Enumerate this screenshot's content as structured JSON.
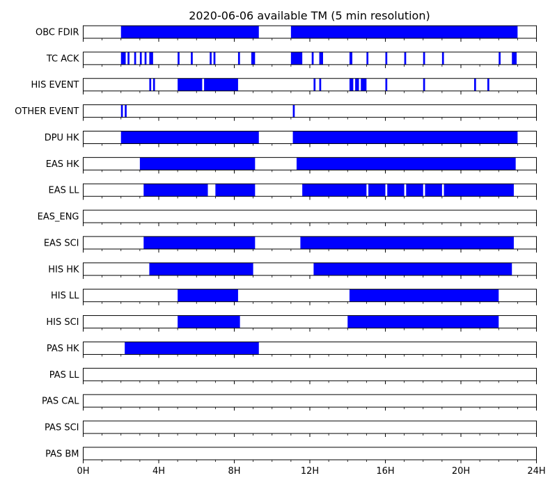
{
  "chart_data": {
    "type": "timeline",
    "title": "2020-06-06 available TM (5 min resolution)",
    "x_unit": "hours",
    "xlim": [
      0,
      24
    ],
    "x_ticks": [
      {
        "value": 0,
        "label": "0H"
      },
      {
        "value": 4,
        "label": "4H"
      },
      {
        "value": 8,
        "label": "8H"
      },
      {
        "value": 12,
        "label": "12H"
      },
      {
        "value": 16,
        "label": "16H"
      },
      {
        "value": 20,
        "label": "20H"
      },
      {
        "value": 24,
        "label": "24H"
      }
    ],
    "minor_tick_step_hours": 1,
    "bar_color": "#0000ff",
    "rows": [
      {
        "label": "OBC FDIR",
        "intervals": [
          [
            2.0,
            9.3
          ],
          [
            11.0,
            23.0
          ]
        ]
      },
      {
        "label": "TC ACK",
        "intervals": [
          [
            2.0,
            2.25
          ],
          [
            2.35,
            2.45
          ],
          [
            2.7,
            2.8
          ],
          [
            3.0,
            3.1
          ],
          [
            3.25,
            3.35
          ],
          [
            3.5,
            3.7
          ],
          [
            5.0,
            5.1
          ],
          [
            5.7,
            5.8
          ],
          [
            6.7,
            6.8
          ],
          [
            6.9,
            7.0
          ],
          [
            8.2,
            8.3
          ],
          [
            8.9,
            9.1
          ],
          [
            11.0,
            11.6
          ],
          [
            12.1,
            12.2
          ],
          [
            12.5,
            12.7
          ],
          [
            14.1,
            14.25
          ],
          [
            15.0,
            15.1
          ],
          [
            16.0,
            16.1
          ],
          [
            17.0,
            17.1
          ],
          [
            18.0,
            18.1
          ],
          [
            19.0,
            19.1
          ],
          [
            22.0,
            22.1
          ],
          [
            22.7,
            22.95
          ]
        ]
      },
      {
        "label": "HIS EVENT",
        "intervals": [
          [
            3.5,
            3.6
          ],
          [
            3.7,
            3.8
          ],
          [
            5.0,
            6.3
          ],
          [
            6.4,
            8.2
          ],
          [
            12.2,
            12.3
          ],
          [
            12.5,
            12.6
          ],
          [
            14.1,
            14.3
          ],
          [
            14.4,
            14.6
          ],
          [
            14.7,
            15.0
          ],
          [
            16.0,
            16.1
          ],
          [
            18.0,
            18.1
          ],
          [
            20.7,
            20.8
          ],
          [
            21.4,
            21.5
          ]
        ]
      },
      {
        "label": "OTHER EVENT",
        "intervals": [
          [
            2.0,
            2.1
          ],
          [
            2.2,
            2.3
          ],
          [
            11.1,
            11.2
          ]
        ]
      },
      {
        "label": "DPU HK",
        "intervals": [
          [
            2.0,
            9.3
          ],
          [
            11.1,
            23.0
          ]
        ]
      },
      {
        "label": "EAS HK",
        "intervals": [
          [
            3.0,
            9.1
          ],
          [
            11.3,
            22.9
          ]
        ]
      },
      {
        "label": "EAS LL",
        "intervals": [
          [
            3.2,
            6.6
          ],
          [
            7.0,
            9.1
          ],
          [
            11.6,
            15.0
          ],
          [
            15.1,
            16.0
          ],
          [
            16.1,
            17.0
          ],
          [
            17.1,
            18.0
          ],
          [
            18.1,
            19.0
          ],
          [
            19.1,
            22.8
          ]
        ]
      },
      {
        "label": "EAS_ENG",
        "intervals": []
      },
      {
        "label": "EAS SCI",
        "intervals": [
          [
            3.2,
            9.1
          ],
          [
            11.5,
            22.8
          ]
        ]
      },
      {
        "label": "HIS HK",
        "intervals": [
          [
            3.5,
            9.0
          ],
          [
            12.2,
            22.7
          ]
        ]
      },
      {
        "label": "HIS LL",
        "intervals": [
          [
            5.0,
            8.2
          ],
          [
            14.1,
            22.0
          ]
        ]
      },
      {
        "label": "HIS SCI",
        "intervals": [
          [
            5.0,
            8.3
          ],
          [
            14.0,
            22.0
          ]
        ]
      },
      {
        "label": "PAS HK",
        "intervals": [
          [
            2.2,
            9.3
          ]
        ]
      },
      {
        "label": "PAS LL",
        "intervals": []
      },
      {
        "label": "PAS CAL",
        "intervals": []
      },
      {
        "label": "PAS SCI",
        "intervals": []
      },
      {
        "label": "PAS BM",
        "intervals": []
      }
    ]
  }
}
